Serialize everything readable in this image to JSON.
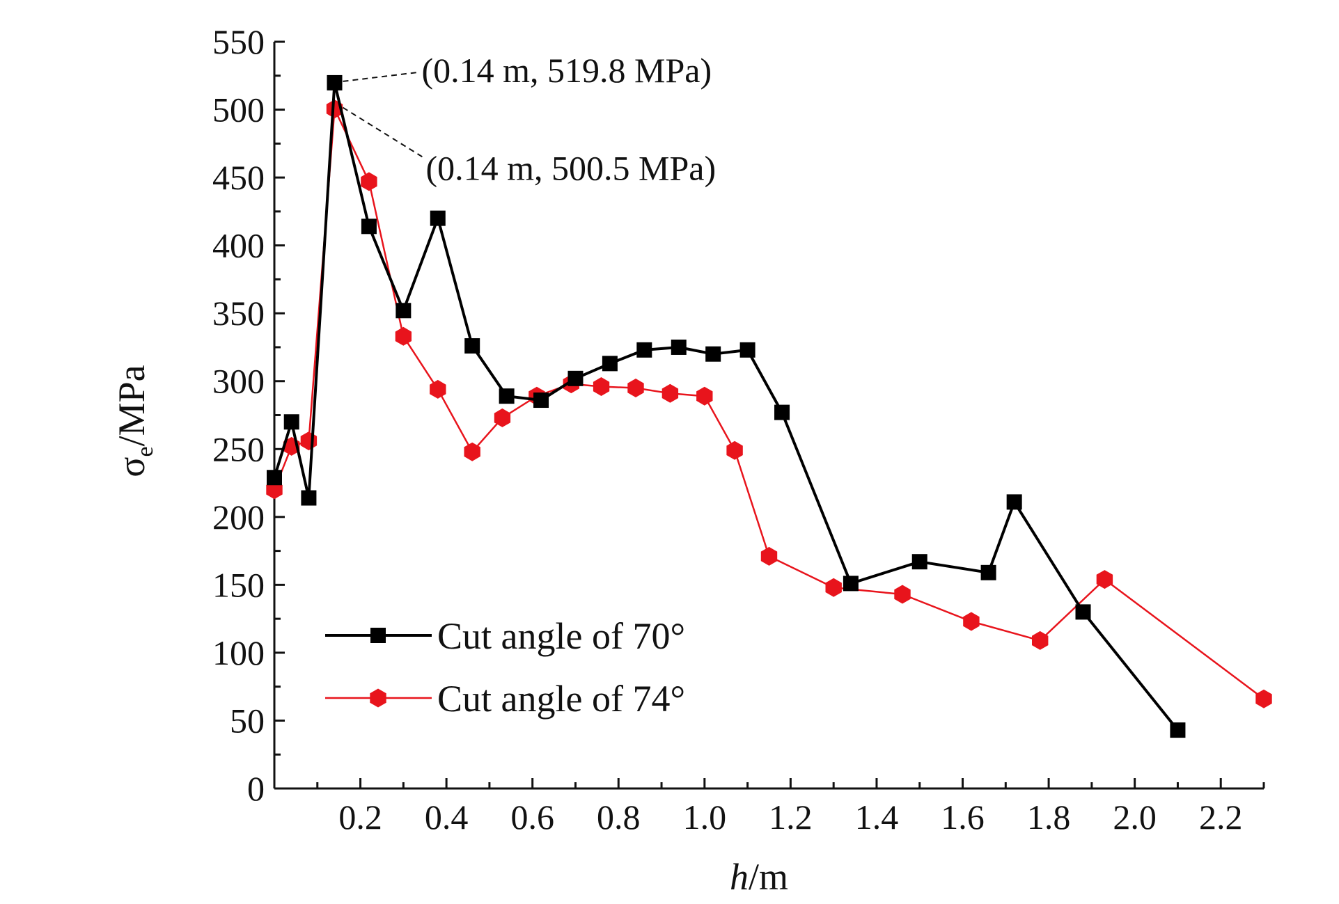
{
  "chart_data": {
    "type": "line",
    "title": "",
    "xlabel": {
      "italic": "h",
      "rest": "/m"
    },
    "ylabel": {
      "sigma": "σ",
      "sub": "e",
      "rest": "/MPa"
    },
    "xlim": [
      0,
      2.3
    ],
    "ylim": [
      0,
      550
    ],
    "x_ticks": [
      0.2,
      0.4,
      0.6,
      0.8,
      1.0,
      1.2,
      1.4,
      1.6,
      1.8,
      2.0,
      2.2
    ],
    "x_tick_labels": [
      "0.2",
      "0.4",
      "0.6",
      "0.8",
      "1.0",
      "1.2",
      "1.4",
      "1.6",
      "1.8",
      "2.0",
      "2.2"
    ],
    "y_ticks": [
      0,
      50,
      100,
      150,
      200,
      250,
      300,
      350,
      400,
      450,
      500,
      550
    ],
    "y_tick_labels": [
      "0",
      "50",
      "100",
      "150",
      "200",
      "250",
      "300",
      "350",
      "400",
      "450",
      "500",
      "550"
    ],
    "grid": false,
    "legend_position": "bottom-left",
    "series": [
      {
        "name": "Cut angle of 70°",
        "color": "#000000",
        "marker": "square",
        "x": [
          0,
          0.04,
          0.08,
          0.14,
          0.22,
          0.3,
          0.38,
          0.46,
          0.54,
          0.62,
          0.7,
          0.78,
          0.86,
          0.94,
          1.02,
          1.1,
          1.18,
          1.34,
          1.5,
          1.66,
          1.72,
          1.88,
          2.1
        ],
        "y": [
          229,
          270,
          214,
          519.8,
          414,
          352,
          420,
          326,
          289,
          286,
          302,
          313,
          323,
          325,
          320,
          323,
          277,
          151,
          167,
          159,
          211,
          130,
          43
        ]
      },
      {
        "name": "Cut angle of 74°",
        "color": "#e8141c",
        "marker": "hexagon",
        "x": [
          0,
          0.04,
          0.08,
          0.14,
          0.22,
          0.3,
          0.38,
          0.46,
          0.53,
          0.61,
          0.69,
          0.76,
          0.84,
          0.92,
          1.0,
          1.07,
          1.15,
          1.3,
          1.46,
          1.62,
          1.78,
          1.93,
          2.3
        ],
        "y": [
          220,
          252,
          256,
          500.5,
          447,
          333,
          294,
          248,
          273,
          289,
          298,
          296,
          295,
          291,
          289,
          249,
          171,
          148,
          143,
          123,
          109,
          154,
          66
        ]
      }
    ],
    "annotations": [
      {
        "text": "(0.14 m, 519.8 MPa)",
        "x": 0.14,
        "y": 519.8,
        "series": 0
      },
      {
        "text": "(0.14 m, 500.5 MPa)",
        "x": 0.14,
        "y": 500.5,
        "series": 1
      }
    ]
  }
}
